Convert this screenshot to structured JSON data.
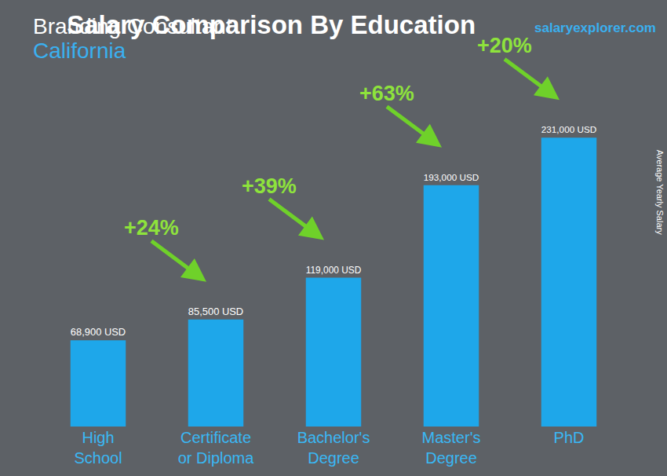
{
  "chart_data": {
    "type": "bar",
    "title": "Salary Comparison By Education",
    "subtitle": "Branding Consultant",
    "location": "California",
    "source": "salaryexplorer.com",
    "y_label": "Average Yearly Salary",
    "categories": [
      "High School",
      "Certificate or Diploma",
      "Bachelor's Degree",
      "Master's Degree",
      "PhD"
    ],
    "values": [
      68900,
      85500,
      119000,
      193000,
      231000
    ],
    "value_labels": [
      "68,900 USD",
      "85,500 USD",
      "119,000 USD",
      "193,000 USD",
      "231,000 USD"
    ],
    "increases": [
      "+24%",
      "+39%",
      "+63%",
      "+20%"
    ],
    "color": "#1ea7ea",
    "ylim": [
      0,
      260000
    ],
    "data_labels": true,
    "tick_labels": "x",
    "grid": false
  }
}
